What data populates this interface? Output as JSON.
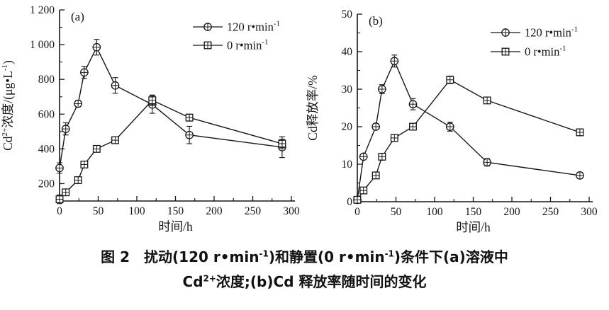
{
  "colors": {
    "ink": "#161616",
    "background": "#ffffff"
  },
  "figure": {
    "caption": {
      "line1_parts": [
        {
          "t": "图 2　扰动(120 r•min"
        },
        {
          "t": "-1",
          "sup": true
        },
        {
          "t": ")和静置(0 r•min"
        },
        {
          "t": "-1",
          "sup": true
        },
        {
          "t": ")条件下(a)溶液中"
        }
      ],
      "line2_parts": [
        {
          "t": "Cd"
        },
        {
          "t": "2+",
          "sup": true
        },
        {
          "t": "浓度;(b)Cd 释放率随时间的变化"
        }
      ]
    }
  },
  "chart_data": [
    {
      "type": "line",
      "panel_label": "(a)",
      "xlabel": "时间/h",
      "ylabel_parts": [
        {
          "t": "Cd"
        },
        {
          "t": "2+",
          "sup": true
        },
        {
          "t": "浓度/(μg•L"
        },
        {
          "t": "-1",
          "sup": true
        },
        {
          "t": ")"
        }
      ],
      "x": [
        0,
        8,
        24,
        32,
        48,
        72,
        120,
        168,
        288
      ],
      "xlim": [
        0,
        300
      ],
      "ylim": [
        100,
        1200
      ],
      "xticks": [
        0,
        50,
        100,
        150,
        200,
        250,
        300
      ],
      "x_minor_step": 25,
      "yticks": [
        200,
        400,
        600,
        800,
        1000,
        1200
      ],
      "ytick_labels": [
        "200",
        "400",
        "600",
        "800",
        "1 000",
        "1 200"
      ],
      "y_minor_step": 100,
      "grid": false,
      "legend_position": "top-right",
      "series": [
        {
          "name_base": "120 r•min",
          "name_sup": "-1",
          "marker": "circle-plus",
          "values": [
            290,
            515,
            660,
            840,
            985,
            765,
            655,
            480,
            410
          ],
          "errors": [
            30,
            35,
            18,
            35,
            45,
            45,
            50,
            50,
            60
          ]
        },
        {
          "name_base": "0 r•min",
          "name_sup": "-1",
          "marker": "square-plus",
          "values": [
            110,
            150,
            220,
            310,
            400,
            450,
            680,
            580,
            430
          ],
          "errors": [
            25,
            12,
            15,
            18,
            15,
            18,
            30,
            20,
            25
          ]
        }
      ]
    },
    {
      "type": "line",
      "panel_label": "(b)",
      "xlabel": "时间/h",
      "ylabel_parts": [
        {
          "t": "Cd释放率/%"
        }
      ],
      "x": [
        0,
        8,
        24,
        32,
        48,
        72,
        120,
        168,
        288
      ],
      "xlim": [
        0,
        300
      ],
      "ylim": [
        0,
        50
      ],
      "xticks": [
        0,
        50,
        100,
        150,
        200,
        250,
        300
      ],
      "x_minor_step": 25,
      "yticks": [
        0,
        10,
        20,
        30,
        40,
        50
      ],
      "ytick_labels": [
        "0",
        "10",
        "20",
        "30",
        "40",
        "50"
      ],
      "y_minor_step": 5,
      "grid": false,
      "legend_position": "top-right",
      "series": [
        {
          "name_base": "120 r•min",
          "name_sup": "-1",
          "marker": "circle-plus",
          "values": [
            0.5,
            12,
            20,
            30,
            37.5,
            26,
            20,
            10.5,
            7
          ],
          "errors": [
            0.5,
            0.6,
            0.8,
            1.2,
            1.6,
            1.5,
            1.2,
            1.0,
            0.8
          ]
        },
        {
          "name_base": "0 r•min",
          "name_sup": "-1",
          "marker": "square-plus",
          "values": [
            0.5,
            3,
            7,
            12,
            17,
            20,
            32.5,
            27,
            18.5
          ],
          "errors": [
            0.4,
            0.5,
            0.6,
            0.9,
            0.7,
            0.9,
            1.0,
            0.8,
            0.9
          ]
        }
      ]
    }
  ]
}
